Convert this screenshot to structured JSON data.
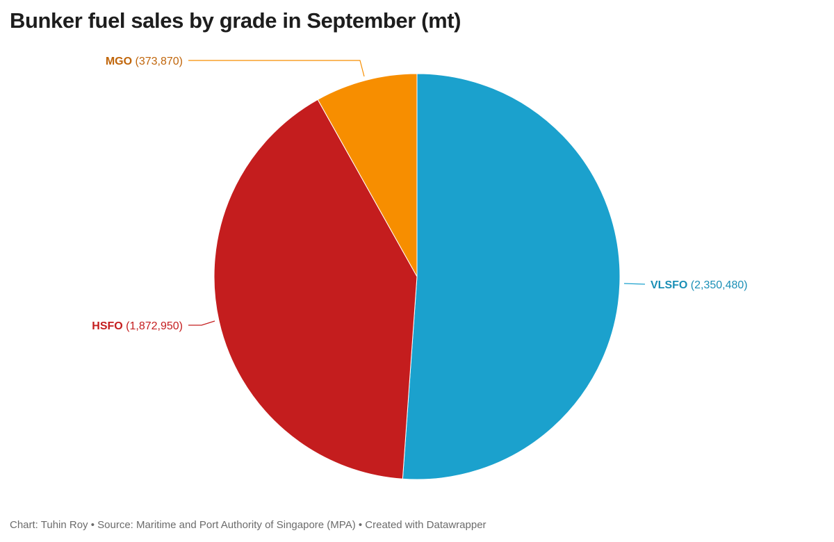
{
  "title": "Bunker fuel sales by grade in September (mt)",
  "footer": "Chart: Tuhin Roy • Source: Maritime and Port Authority of Singapore (MPA) • Created with Datawrapper",
  "chart_data": {
    "type": "pie",
    "title": "Bunker fuel sales by grade in September (mt)",
    "slices": [
      {
        "label": "VLSFO",
        "value": 2350480,
        "value_text": "(2,350,480)",
        "color": "#1ba1cd",
        "label_color": "#1a8fb6"
      },
      {
        "label": "HSFO",
        "value": 1872950,
        "value_text": "(1,872,950)",
        "color": "#c41d1e",
        "label_color": "#c41d1e"
      },
      {
        "label": "MGO",
        "value": 373870,
        "value_text": "(373,870)",
        "color": "#f78e00",
        "label_color": "#c0650a"
      }
    ]
  }
}
